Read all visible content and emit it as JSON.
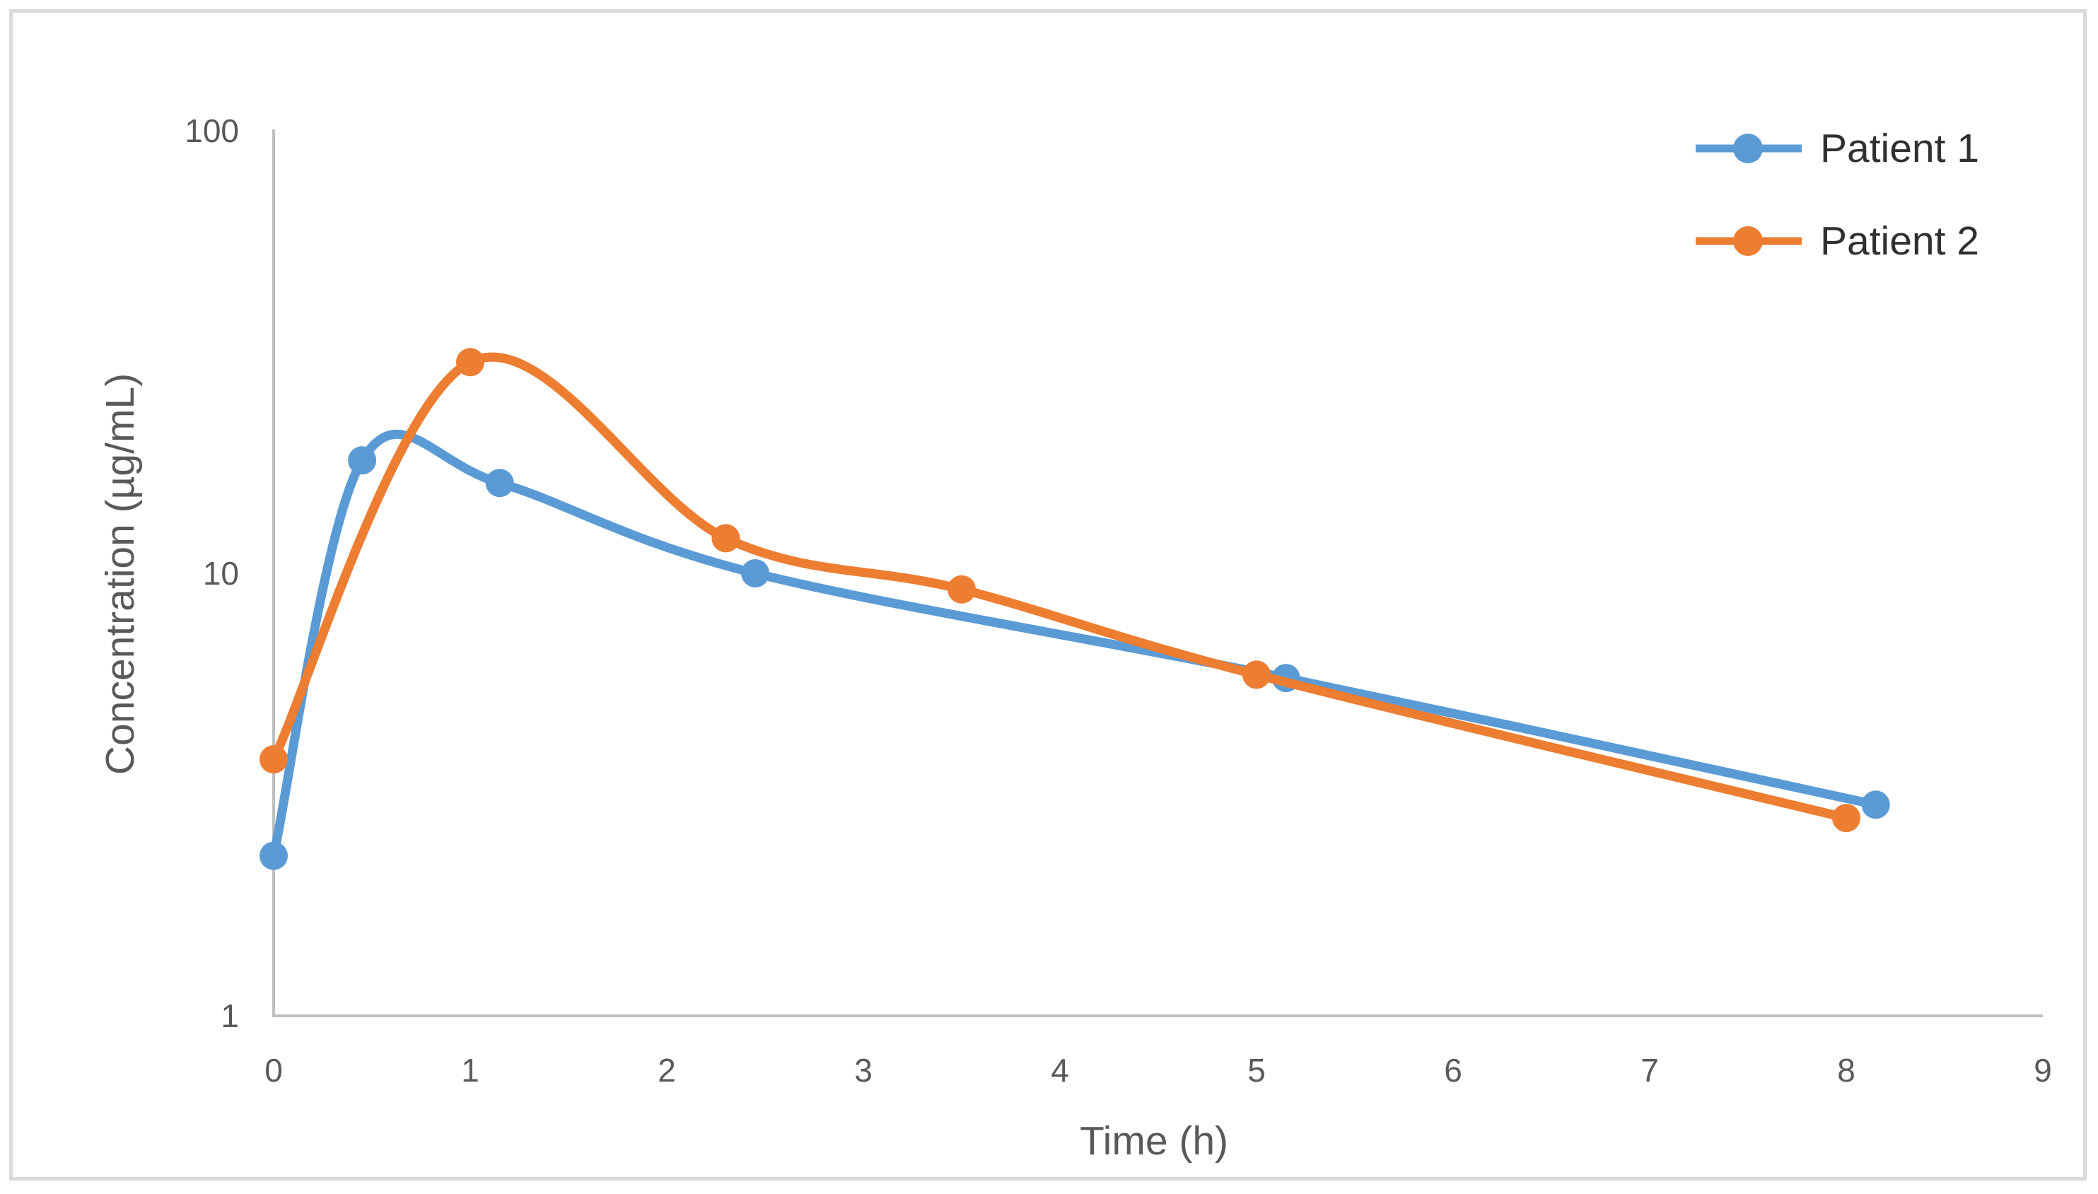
{
  "chart_data": {
    "type": "line",
    "title": "",
    "xlabel": "Time (h)",
    "ylabel": "Concentration (µg/mL)",
    "x_axis": {
      "min": 0,
      "max": 9,
      "ticks": [
        0,
        1,
        2,
        3,
        4,
        5,
        6,
        7,
        8,
        9
      ]
    },
    "y_axis": {
      "scale": "log",
      "min": 1,
      "max": 100,
      "ticks": [
        1,
        10,
        100
      ]
    },
    "grid": false,
    "legend_position": "top-right",
    "series": [
      {
        "name": "Patient 1",
        "color": "#5B9BD5",
        "marker": "circle",
        "points": [
          [
            0,
            2.3
          ],
          [
            0.45,
            18
          ],
          [
            1.15,
            16
          ],
          [
            2.45,
            10
          ],
          [
            5.15,
            5.8
          ],
          [
            8.15,
            3.0
          ]
        ]
      },
      {
        "name": "Patient 2",
        "color": "#ED7D31",
        "marker": "circle",
        "points": [
          [
            0,
            3.8
          ],
          [
            1,
            30
          ],
          [
            2.3,
            12
          ],
          [
            3.5,
            9.2
          ],
          [
            5,
            5.9
          ],
          [
            8,
            2.8
          ]
        ]
      }
    ],
    "styles": {
      "axis_line_color": "#BFBFBF",
      "tick_label_color": "#595959",
      "axis_title_color": "#595959",
      "legend_text_color": "#303030",
      "frame_border_color": "#DADADA",
      "background": "#FFFFFF"
    }
  }
}
